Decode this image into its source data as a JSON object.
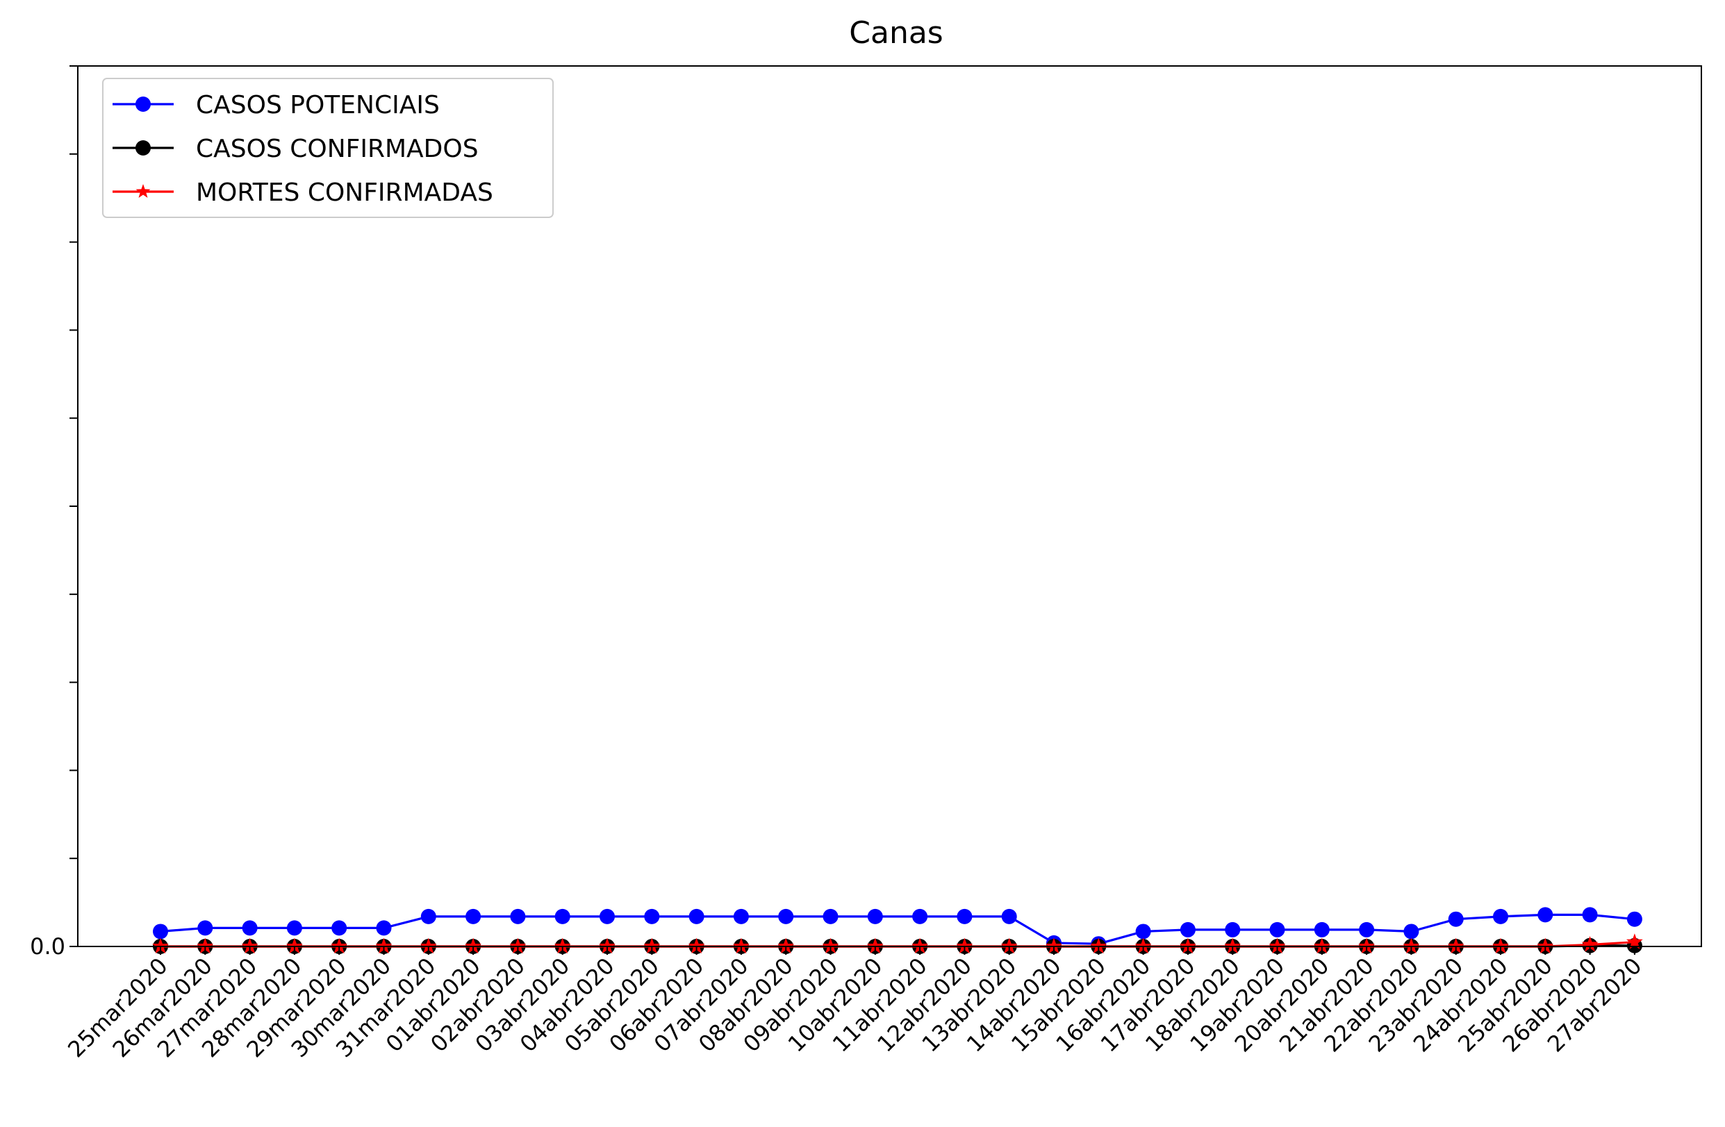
{
  "chart_data": {
    "type": "line",
    "title": "Canas",
    "xlabel": "",
    "ylabel": "",
    "ylim": [
      0,
      1.0
    ],
    "y_tick_labels": [
      "0.0",
      "",
      "",
      "",
      "",
      "",
      "",
      "",
      "",
      "",
      ""
    ],
    "legend_position": "top-left",
    "grid": false,
    "categories": [
      "25mar2020",
      "26mar2020",
      "27mar2020",
      "28mar2020",
      "29mar2020",
      "30mar2020",
      "31mar2020",
      "01abr2020",
      "02abr2020",
      "03abr2020",
      "04abr2020",
      "05abr2020",
      "06abr2020",
      "07abr2020",
      "08abr2020",
      "09abr2020",
      "10abr2020",
      "11abr2020",
      "12abr2020",
      "13abr2020",
      "14abr2020",
      "15abr2020",
      "16abr2020",
      "17abr2020",
      "18abr2020",
      "19abr2020",
      "20abr2020",
      "21abr2020",
      "22abr2020",
      "23abr2020",
      "24abr2020",
      "25abr2020",
      "26abr2020",
      "27abr2020"
    ],
    "series": [
      {
        "name": "CASOS POTENCIAIS",
        "color": "#0000ff",
        "marker": "circle",
        "values": [
          0.017,
          0.021,
          0.021,
          0.021,
          0.021,
          0.021,
          0.034,
          0.034,
          0.034,
          0.034,
          0.034,
          0.034,
          0.034,
          0.034,
          0.034,
          0.034,
          0.034,
          0.034,
          0.034,
          0.034,
          0.004,
          0.003,
          0.017,
          0.019,
          0.019,
          0.019,
          0.019,
          0.019,
          0.017,
          0.031,
          0.034,
          0.036,
          0.036,
          0.031
        ]
      },
      {
        "name": "CASOS CONFIRMADOS",
        "color": "#000000",
        "marker": "circle",
        "values": [
          0,
          0,
          0,
          0,
          0,
          0,
          0,
          0,
          0,
          0,
          0,
          0,
          0,
          0,
          0,
          0,
          0,
          0,
          0,
          0,
          0,
          0,
          0,
          0,
          0,
          0,
          0,
          0,
          0,
          0,
          0,
          0,
          0.001,
          0.001
        ]
      },
      {
        "name": "MORTES CONFIRMADAS",
        "color": "#ff0000",
        "marker": "star",
        "values": [
          0,
          0,
          0,
          0,
          0,
          0,
          0,
          0,
          0,
          0,
          0,
          0,
          0,
          0,
          0,
          0,
          0,
          0,
          0,
          0,
          0,
          0,
          0,
          0,
          0,
          0,
          0,
          0,
          0,
          0,
          0,
          0,
          0.002,
          0.005
        ]
      }
    ]
  }
}
